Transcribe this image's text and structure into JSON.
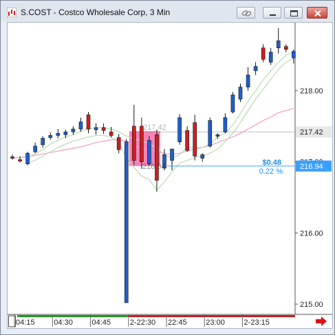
{
  "window": {
    "title": "S.COST - Costco Wholesale Corp, 3 Min"
  },
  "icons": {
    "app": "chart-app-icon",
    "link": "link-icon",
    "minimize": "minimize-icon",
    "maximize": "maximize-icon",
    "close": "close-icon",
    "scroll_right": "arrow-right-icon"
  },
  "colors": {
    "up_candle": "#1f5fd0",
    "down_candle": "#d01f1f",
    "short_ma": "#b9ddb0",
    "long_ma": "#f29bc4",
    "crosshair_line": "#bdbdbd",
    "last_price_line": "#3aa0ff",
    "highlight": "#f0509a",
    "timeline_green": "#1a9a1a",
    "timeline_red": "#cc1b1b"
  },
  "chart_data": {
    "type": "candlestick",
    "title": "",
    "xlabel": "",
    "ylabel": "",
    "ylim": [
      214.95,
      219.05
    ],
    "y_ticks": [
      "218.00",
      "217.00",
      "216.00",
      "215.00"
    ],
    "x_ticks": [
      {
        "label": "04:15",
        "index": 1
      },
      {
        "label": "04:30",
        "index": 6
      },
      {
        "label": "04:45",
        "index": 11
      },
      {
        "label": "2-22:30",
        "index": 16
      },
      {
        "label": "22:45",
        "index": 21
      },
      {
        "label": "23:00",
        "index": 26
      },
      {
        "label": "2-23:15",
        "index": 31
      }
    ],
    "candles": [
      {
        "o": 217.07,
        "h": 217.1,
        "l": 217.03,
        "c": 217.05
      },
      {
        "o": 217.03,
        "h": 217.08,
        "l": 216.99,
        "c": 217.01
      },
      {
        "o": 216.97,
        "h": 217.14,
        "l": 216.95,
        "c": 217.12
      },
      {
        "o": 217.14,
        "h": 217.27,
        "l": 217.12,
        "c": 217.22
      },
      {
        "o": 217.24,
        "h": 217.36,
        "l": 217.2,
        "c": 217.33
      },
      {
        "o": 217.34,
        "h": 217.41,
        "l": 217.31,
        "c": 217.37
      },
      {
        "o": 217.37,
        "h": 217.46,
        "l": 217.33,
        "c": 217.4
      },
      {
        "o": 217.38,
        "h": 217.45,
        "l": 217.33,
        "c": 217.42
      },
      {
        "o": 217.42,
        "h": 217.5,
        "l": 217.38,
        "c": 217.46
      },
      {
        "o": 217.46,
        "h": 217.62,
        "l": 217.42,
        "c": 217.56
      },
      {
        "o": 217.66,
        "h": 217.7,
        "l": 217.4,
        "c": 217.46
      },
      {
        "o": 217.45,
        "h": 217.54,
        "l": 217.38,
        "c": 217.48
      },
      {
        "o": 217.48,
        "h": 217.54,
        "l": 217.39,
        "c": 217.44
      },
      {
        "o": 217.42,
        "h": 217.49,
        "l": 217.34,
        "c": 217.37
      },
      {
        "o": 217.34,
        "h": 217.39,
        "l": 217.12,
        "c": 217.17
      },
      {
        "o": 215.02,
        "h": 217.32,
        "l": 215.02,
        "c": 217.28
      },
      {
        "o": 217.5,
        "h": 217.8,
        "l": 216.95,
        "c": 217.02
      },
      {
        "o": 217.5,
        "h": 217.62,
        "l": 216.9,
        "c": 217.0
      },
      {
        "o": 216.97,
        "h": 217.36,
        "l": 216.95,
        "c": 217.3
      },
      {
        "o": 217.38,
        "h": 217.46,
        "l": 216.58,
        "c": 216.74
      },
      {
        "o": 216.91,
        "h": 217.18,
        "l": 216.88,
        "c": 217.1
      },
      {
        "o": 217.02,
        "h": 217.18,
        "l": 216.88,
        "c": 217.18
      },
      {
        "o": 217.28,
        "h": 217.67,
        "l": 217.24,
        "c": 217.62
      },
      {
        "o": 217.44,
        "h": 217.5,
        "l": 217.14,
        "c": 217.16
      },
      {
        "o": 217.55,
        "h": 217.66,
        "l": 217.02,
        "c": 217.08
      },
      {
        "o": 217.05,
        "h": 217.12,
        "l": 217.0,
        "c": 217.1
      },
      {
        "o": 217.22,
        "h": 217.62,
        "l": 217.2,
        "c": 217.58
      },
      {
        "o": 217.36,
        "h": 217.4,
        "l": 217.32,
        "c": 217.38
      },
      {
        "o": 217.42,
        "h": 217.68,
        "l": 217.4,
        "c": 217.62
      },
      {
        "o": 217.7,
        "h": 217.98,
        "l": 217.68,
        "c": 217.94
      },
      {
        "o": 217.88,
        "h": 218.1,
        "l": 217.84,
        "c": 218.05
      },
      {
        "o": 218.05,
        "h": 218.33,
        "l": 218.0,
        "c": 218.22
      },
      {
        "o": 218.28,
        "h": 218.4,
        "l": 218.22,
        "c": 218.34
      },
      {
        "o": 218.6,
        "h": 218.65,
        "l": 218.4,
        "c": 218.44
      },
      {
        "o": 218.4,
        "h": 218.6,
        "l": 218.36,
        "c": 218.54
      },
      {
        "o": 218.6,
        "h": 218.88,
        "l": 218.52,
        "c": 218.7
      },
      {
        "o": 218.62,
        "h": 218.65,
        "l": 218.54,
        "c": 218.58
      },
      {
        "o": 218.46,
        "h": 218.58,
        "l": 218.38,
        "c": 218.55
      }
    ],
    "short_ma": {
      "name": "",
      "upper": [
        null,
        null,
        217.06,
        217.11,
        217.17,
        217.25,
        217.3,
        217.35,
        217.38,
        217.43,
        217.46,
        217.48,
        217.48,
        217.46,
        217.42,
        217.36,
        217.32,
        217.3,
        217.25,
        217.2,
        217.1,
        217.05,
        217.1,
        217.2,
        217.2,
        217.2,
        217.25,
        217.35,
        217.4,
        217.52,
        217.68,
        217.85,
        218.0,
        218.15,
        218.28,
        218.4,
        218.5,
        218.54
      ],
      "lower": [
        null,
        null,
        216.98,
        217.02,
        217.08,
        217.14,
        217.2,
        217.25,
        217.29,
        217.32,
        217.35,
        217.37,
        217.37,
        217.35,
        217.28,
        217.05,
        216.92,
        216.8,
        216.75,
        216.6,
        216.72,
        216.86,
        216.98,
        217.02,
        217.06,
        217.08,
        217.12,
        217.18,
        217.28,
        217.4,
        217.55,
        217.72,
        217.88,
        218.02,
        218.16,
        218.3,
        218.4,
        218.45
      ]
    },
    "long_ma": {
      "name": "",
      "values": [
        217.05,
        217.06,
        217.07,
        217.09,
        217.11,
        217.13,
        217.15,
        217.17,
        217.19,
        217.21,
        217.24,
        217.27,
        217.29,
        217.31,
        217.31,
        217.29,
        217.23,
        217.19,
        217.17,
        217.14,
        217.12,
        217.1,
        217.12,
        217.15,
        217.18,
        217.2,
        217.23,
        217.27,
        217.31,
        217.35,
        217.4,
        217.46,
        217.52,
        217.58,
        217.63,
        217.69,
        217.72,
        217.75
      ]
    },
    "crosshair": {
      "price": 217.42,
      "label": "217.42",
      "tag": "217.42"
    },
    "last_price": {
      "price": 216.94,
      "tag": "216.94",
      "change": "$0.48",
      "change_pct": "0.22 %"
    },
    "highlight": {
      "start_index": 16,
      "end_index": 19,
      "top": 217.43,
      "bottom": 216.94,
      "price_label": "216.94"
    }
  }
}
